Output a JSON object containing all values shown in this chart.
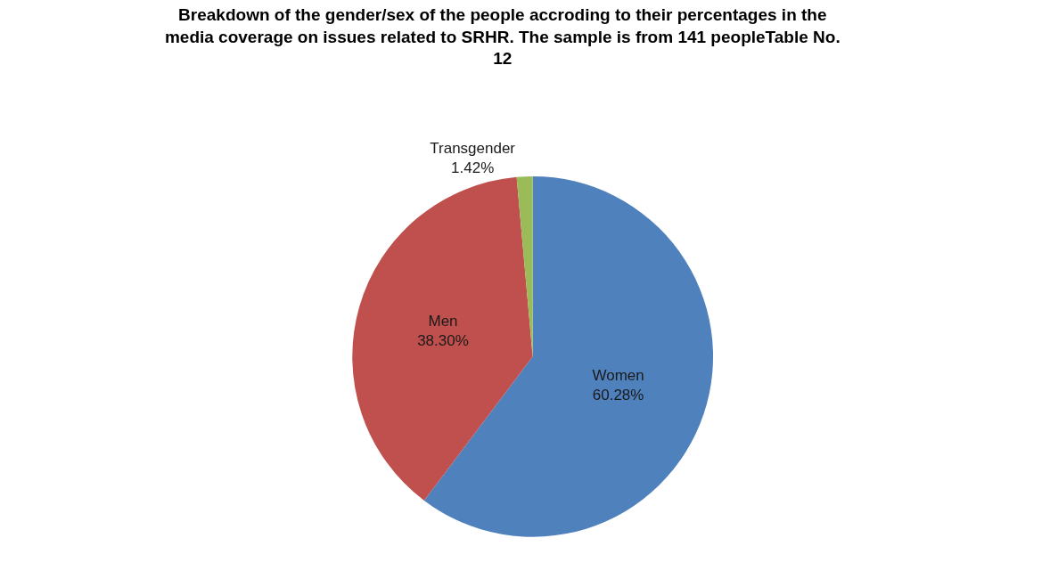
{
  "chart_data": {
    "type": "pie",
    "title": "Breakdown of the gender/sex of the people accroding to their percentages in the media coverage on issues related to SRHR. The sample is from 141 peopleTable No. 12",
    "categories": [
      "Women",
      "Men",
      "Transgender"
    ],
    "values": [
      60.28,
      38.3,
      1.42
    ],
    "value_labels": [
      "60.28%",
      "38.30%",
      "1.42%"
    ],
    "colors": [
      "#4f81bd",
      "#c0504d",
      "#9bbb59"
    ],
    "legend": false
  }
}
